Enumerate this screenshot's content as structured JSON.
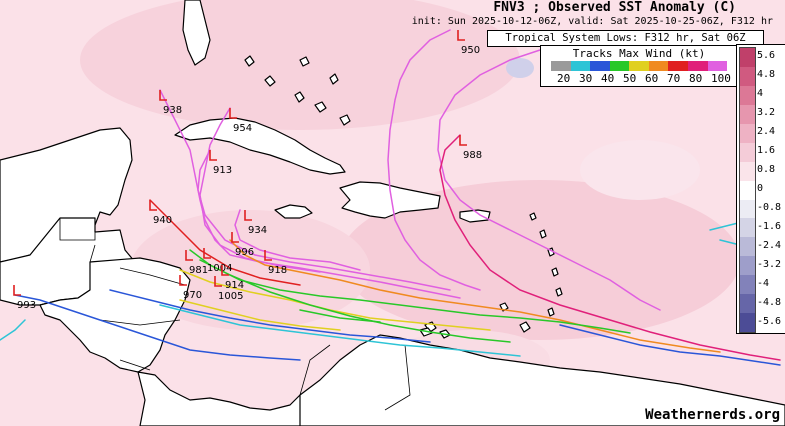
{
  "title": "FNV3 ; Observed SST Anomaly (C)",
  "subtitle": "init: Sun 2025-10-12-06Z, valid: Sat 2025-10-25-06Z, F312 hr",
  "lows_header": "Tropical System Lows: F312 hr, Sat 06Z",
  "wind_legend": {
    "title": "Tracks Max Wind (kt)",
    "labels": [
      "20",
      "30",
      "40",
      "50",
      "60",
      "70",
      "80",
      "100"
    ],
    "colors": [
      "#9a9a9a",
      "#2ec4d6",
      "#2a56d8",
      "#28c828",
      "#e0d020",
      "#f08a20",
      "#e02020",
      "#e0207a",
      "#e060e0"
    ]
  },
  "colorbar": {
    "labels": [
      "5.6",
      "4.8",
      "4",
      "3.2",
      "2.4",
      "1.6",
      "0.8",
      "0",
      "-0.8",
      "-1.6",
      "-2.4",
      "-3.2",
      "-4",
      "-4.8",
      "-5.6"
    ],
    "colors": [
      "#c0406a",
      "#d05a80",
      "#dc7896",
      "#e696ae",
      "#eeb2c4",
      "#f4ccd8",
      "#fae4ea",
      "#ffffff",
      "#ececf4",
      "#d4d4e6",
      "#babad8",
      "#9e9eca",
      "#8282ba",
      "#6666a8",
      "#4c4c96"
    ]
  },
  "lows": [
    {
      "label": "950",
      "color": "#e02020"
    },
    {
      "label": "938",
      "color": "#e02020"
    },
    {
      "label": "954",
      "color": "#e02020"
    },
    {
      "label": "988",
      "color": "#e02020"
    },
    {
      "label": "913",
      "color": "#e02020"
    },
    {
      "label": "940",
      "color": "#e02020"
    },
    {
      "label": "934",
      "color": "#e02020"
    },
    {
      "label": "996",
      "color": "#e02020"
    },
    {
      "label": "981",
      "color": "#e02020"
    },
    {
      "label": "1004",
      "color": "#e02020"
    },
    {
      "label": "918",
      "color": "#e02020"
    },
    {
      "label": "914",
      "color": "#e02020"
    },
    {
      "label": "970",
      "color": "#e02020"
    },
    {
      "label": "1005",
      "color": "#e02020"
    },
    {
      "label": "993",
      "color": "#e02020"
    }
  ],
  "credit": "Weathernerds.org"
}
